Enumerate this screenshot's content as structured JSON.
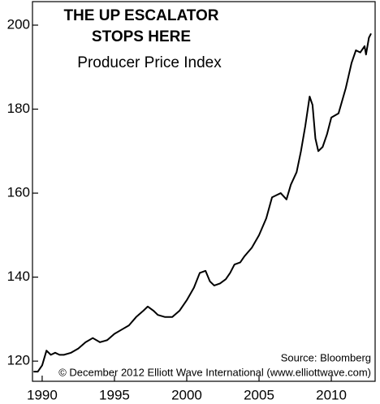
{
  "chart_data": {
    "type": "line",
    "title": [
      "THE UP ESCALATOR",
      "STOPS HERE"
    ],
    "subtitle": "Producer Price Index",
    "annotations": [
      "Source: Bloomberg",
      "© December 2012 Elliott Wave International (www.elliottwave.com)"
    ],
    "x": [
      1989.4,
      1989.7,
      1990.0,
      1990.3,
      1990.6,
      1990.9,
      1991.2,
      1991.5,
      1992.0,
      1992.5,
      1993.0,
      1993.5,
      1994.0,
      1994.5,
      1995.0,
      1995.5,
      1996.0,
      1996.5,
      1997.0,
      1997.3,
      1997.7,
      1998.0,
      1998.5,
      1999.0,
      1999.5,
      2000.0,
      2000.5,
      2000.9,
      2001.3,
      2001.6,
      2001.9,
      2002.3,
      2002.7,
      2003.0,
      2003.3,
      2003.7,
      2004.0,
      2004.5,
      2005.0,
      2005.5,
      2005.9,
      2006.2,
      2006.5,
      2006.9,
      2007.2,
      2007.6,
      2007.9,
      2008.2,
      2008.5,
      2008.7,
      2008.9,
      2009.1,
      2009.4,
      2009.7,
      2010.0,
      2010.5,
      2011.0,
      2011.4,
      2011.7,
      2012.0,
      2012.3,
      2012.4,
      2012.6,
      2012.75
    ],
    "series": [
      {
        "color": "#000000",
        "values": [
          117.5,
          117.5,
          119,
          122.5,
          121.5,
          122,
          121.5,
          121.5,
          122,
          123,
          124.5,
          125.5,
          124.5,
          125,
          126.5,
          127.5,
          128.5,
          130.5,
          132,
          133,
          132,
          131,
          130.5,
          130.5,
          132,
          134.5,
          137.5,
          141,
          141.5,
          139,
          138,
          138.5,
          139.5,
          141,
          143,
          143.5,
          145,
          147,
          150,
          154,
          159,
          159.5,
          160,
          158.5,
          162,
          165,
          170,
          176,
          183,
          181,
          173,
          170,
          171,
          174,
          178,
          179,
          185,
          191,
          194,
          193.5,
          195,
          193,
          197,
          198
        ]
      }
    ],
    "xlim": [
      1989.33,
      2013.03
    ],
    "xticks": [
      1990,
      1995,
      2000,
      2005,
      2010
    ],
    "ylim": [
      115.2,
      205.6
    ],
    "yticks": [
      120,
      140,
      160,
      180,
      200
    ]
  }
}
